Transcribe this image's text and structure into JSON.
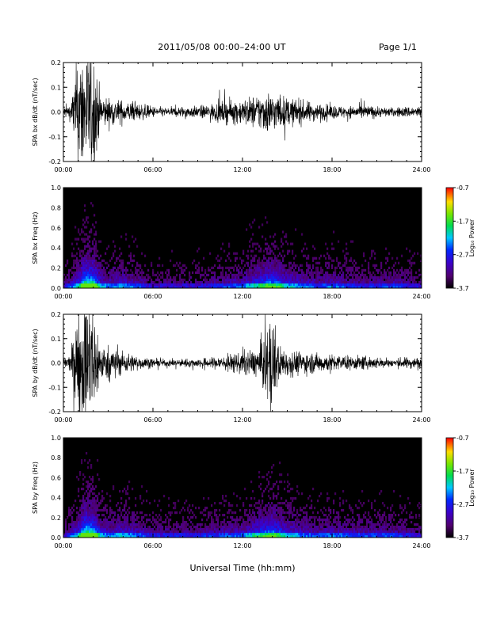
{
  "header": {
    "title": "2011/05/08  00:00–24:00 UT",
    "page": "Page 1/1"
  },
  "chart_data": [
    {
      "type": "line",
      "panel": "bx-dbdt",
      "ylabel": "SPA bx dB/dt (nT/sec)",
      "ylim": [
        -0.2,
        0.2
      ],
      "yticks": [
        "-0.2",
        "-0.1",
        "0.0",
        "0.1",
        "0.2"
      ],
      "xlim": [
        "00:00",
        "24:00"
      ],
      "xticks": [
        "00:00",
        "06:00",
        "12:00",
        "18:00",
        "24:00"
      ],
      "envelope_hours": [
        0,
        0.5,
        1.0,
        1.5,
        2.0,
        2.5,
        3.0,
        3.5,
        4.0,
        5.0,
        6.0,
        7.0,
        8.0,
        9.0,
        10.0,
        11.0,
        12.0,
        13.0,
        13.5,
        14.0,
        15.0,
        16.0,
        17.0,
        18.0,
        19.0,
        20.0,
        21.0,
        22.0,
        23.0,
        24.0
      ],
      "envelope_amp": [
        0.02,
        0.03,
        0.22,
        0.22,
        0.22,
        0.06,
        0.05,
        0.045,
        0.04,
        0.03,
        0.02,
        0.015,
        0.02,
        0.02,
        0.03,
        0.04,
        0.045,
        0.06,
        0.075,
        0.07,
        0.05,
        0.04,
        0.03,
        0.025,
        0.02,
        0.025,
        0.02,
        0.015,
        0.02,
        0.02
      ]
    },
    {
      "type": "heatmap",
      "panel": "bx-freq",
      "ylabel": "SPA bx Freq (Hz)",
      "ylim": [
        0.0,
        1.0
      ],
      "yticks": [
        "0.0",
        "0.2",
        "0.4",
        "0.6",
        "0.8",
        "1.0"
      ],
      "xlim": [
        "00:00",
        "24:00"
      ],
      "xticks": [
        "00:00",
        "06:00",
        "12:00",
        "18:00",
        "24:00"
      ],
      "colorbar": {
        "label": "Log₁₀ Power",
        "ticks": [
          "-0.7",
          "-1.7",
          "-2.7",
          "-3.7"
        ],
        "range": [
          -3.7,
          -0.7
        ]
      },
      "activity_hours": [
        0,
        1.0,
        1.5,
        2.0,
        2.5,
        3.0,
        4.0,
        6.0,
        9.0,
        12.0,
        13.0,
        14.0,
        15.0,
        17.0,
        18.0,
        20.0,
        22.0,
        24.0
      ],
      "activity_level": [
        0.15,
        0.5,
        1.0,
        0.9,
        0.45,
        0.35,
        0.4,
        0.2,
        0.2,
        0.35,
        0.55,
        0.7,
        0.45,
        0.3,
        0.35,
        0.25,
        0.3,
        0.2
      ]
    },
    {
      "type": "line",
      "panel": "by-dbdt",
      "ylabel": "SPA by dB/dt (nT/sec)",
      "ylim": [
        -0.2,
        0.2
      ],
      "yticks": [
        "-0.2",
        "-0.1",
        "0.0",
        "0.1",
        "0.2"
      ],
      "xlim": [
        "00:00",
        "24:00"
      ],
      "xticks": [
        "00:00",
        "06:00",
        "12:00",
        "18:00",
        "24:00"
      ],
      "envelope_hours": [
        0,
        0.5,
        1.0,
        1.5,
        2.0,
        2.5,
        3.0,
        3.5,
        4.0,
        5.0,
        6.0,
        7.0,
        8.0,
        9.0,
        10.0,
        11.0,
        12.0,
        13.0,
        13.5,
        14.0,
        14.5,
        15.0,
        16.0,
        17.0,
        18.0,
        19.0,
        20.0,
        21.0,
        22.0,
        23.0,
        24.0
      ],
      "envelope_amp": [
        0.02,
        0.03,
        0.22,
        0.22,
        0.22,
        0.06,
        0.06,
        0.05,
        0.04,
        0.025,
        0.015,
        0.012,
        0.015,
        0.015,
        0.02,
        0.03,
        0.04,
        0.05,
        0.12,
        0.17,
        0.06,
        0.05,
        0.04,
        0.035,
        0.03,
        0.025,
        0.025,
        0.02,
        0.015,
        0.02,
        0.02
      ]
    },
    {
      "type": "heatmap",
      "panel": "by-freq",
      "ylabel": "SPA by Freq (Hz)",
      "ylim": [
        0.0,
        1.0
      ],
      "yticks": [
        "0.0",
        "0.2",
        "0.4",
        "0.6",
        "0.8",
        "1.0"
      ],
      "xlim": [
        "00:00",
        "24:00"
      ],
      "xticks": [
        "00:00",
        "06:00",
        "12:00",
        "18:00",
        "24:00"
      ],
      "colorbar": {
        "label": "Log₁₀ Power",
        "ticks": [
          "-0.7",
          "-1.7",
          "-2.7",
          "-3.7"
        ],
        "range": [
          -3.7,
          -0.7
        ]
      },
      "activity_hours": [
        0,
        1.0,
        1.5,
        2.0,
        2.5,
        3.0,
        4.0,
        6.0,
        9.0,
        12.0,
        13.0,
        14.0,
        15.0,
        17.0,
        18.0,
        20.0,
        22.0,
        24.0
      ],
      "activity_level": [
        0.15,
        0.5,
        1.0,
        0.9,
        0.45,
        0.35,
        0.45,
        0.25,
        0.25,
        0.35,
        0.55,
        0.7,
        0.45,
        0.3,
        0.35,
        0.3,
        0.3,
        0.2
      ]
    }
  ],
  "xaxis": {
    "label": "Universal Time (hh:mm)"
  }
}
